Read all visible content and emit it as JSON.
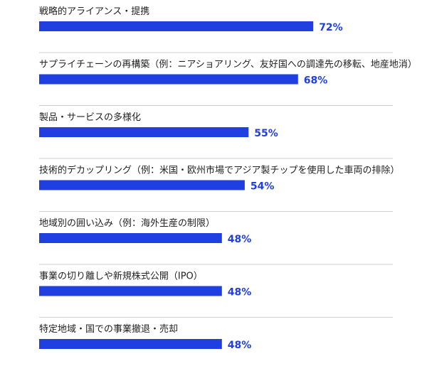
{
  "chart_data": {
    "type": "bar",
    "orientation": "horizontal",
    "categories": [
      "戦略的アライアンス・提携",
      "サプライチェーンの再構築（例：ニアショアリング、友好国への調達先の移転、地産地消）",
      "製品・サービスの多様化",
      "技術的デカップリング（例：米国・欧州市場でアジア製チップを使用した車両の排除）",
      "地域別の囲い込み（例：海外生産の制限）",
      "事業の切り離しや新規株式公開（IPO）",
      "特定地域・国での事業撤退・売却"
    ],
    "values": [
      72,
      68,
      55,
      54,
      48,
      48,
      48
    ],
    "value_labels": [
      "72%",
      "68%",
      "55%",
      "54%",
      "48%",
      "48%",
      "48%"
    ],
    "unit": "%",
    "xlim": [
      0,
      100
    ],
    "grid": false,
    "legend": "none",
    "bar_color": "#1f3fe0",
    "label_color": "#1f3fe0",
    "text_color": "#222222",
    "separator_color": "#cfcfcf"
  }
}
